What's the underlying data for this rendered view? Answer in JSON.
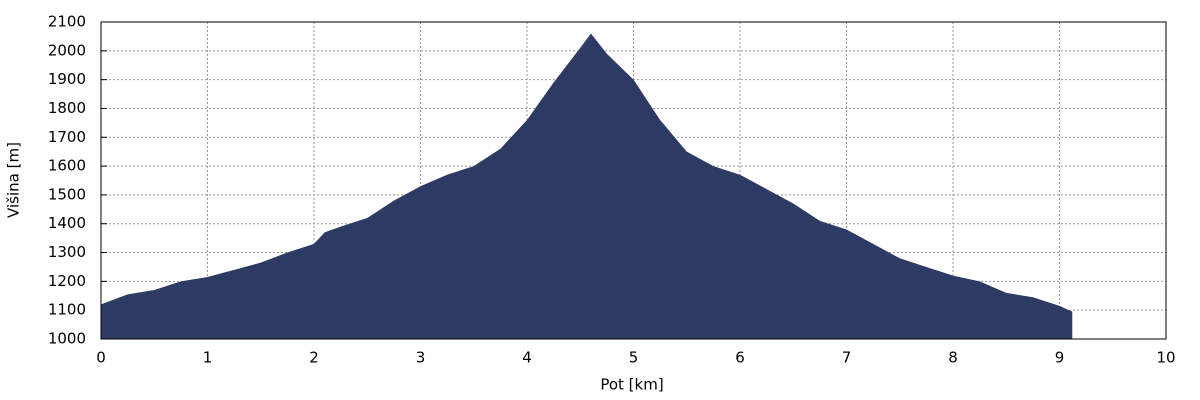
{
  "chart_data": {
    "type": "area",
    "x_label": "Pot [km]",
    "y_label": "Višina [m]",
    "color": "#2d3a64",
    "x": [
      0,
      0.25,
      0.5,
      0.75,
      1.0,
      1.25,
      1.5,
      1.75,
      2.0,
      2.1,
      2.25,
      2.5,
      2.75,
      3.0,
      3.25,
      3.5,
      3.75,
      4.0,
      4.25,
      4.5,
      4.6,
      4.75,
      5.0,
      5.25,
      5.5,
      5.75,
      6.0,
      6.25,
      6.5,
      6.75,
      7.0,
      7.25,
      7.5,
      7.75,
      8.0,
      8.25,
      8.5,
      8.75,
      9.0,
      9.12
    ],
    "values": [
      1120,
      1155,
      1170,
      1200,
      1215,
      1240,
      1265,
      1300,
      1330,
      1370,
      1390,
      1420,
      1480,
      1530,
      1570,
      1600,
      1660,
      1760,
      1890,
      2010,
      2060,
      1990,
      1900,
      1760,
      1650,
      1600,
      1570,
      1520,
      1470,
      1410,
      1380,
      1330,
      1280,
      1250,
      1220,
      1200,
      1160,
      1145,
      1115,
      1095
    ],
    "xlim": [
      0,
      10
    ],
    "xticks": [
      0,
      1,
      2,
      3,
      4,
      5,
      6,
      7,
      8,
      9,
      10
    ],
    "ylim": [
      1000,
      2100
    ],
    "yticks": [
      1000,
      1100,
      1200,
      1300,
      1400,
      1500,
      1600,
      1700,
      1800,
      1900,
      2000,
      2100
    ],
    "grid": true
  }
}
